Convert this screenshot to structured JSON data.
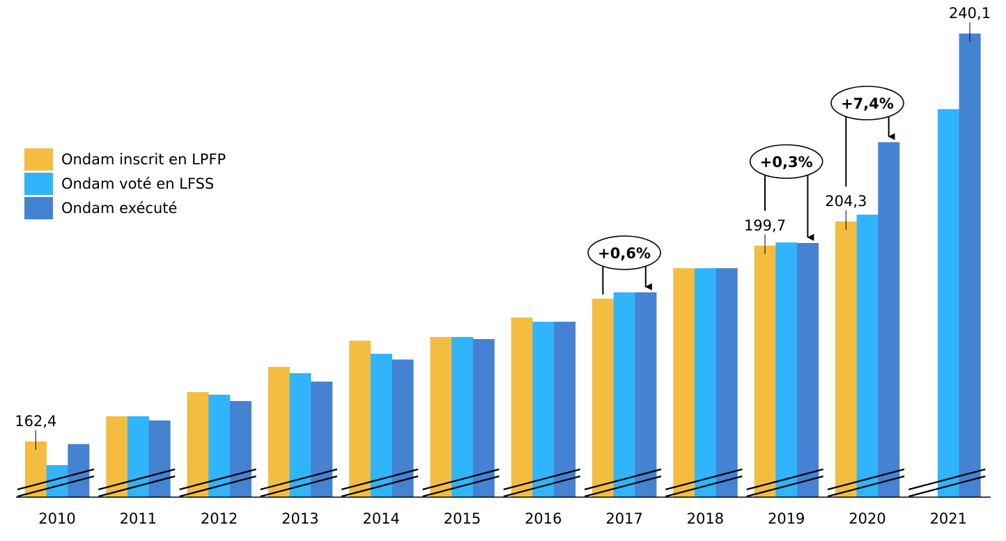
{
  "chart_data": {
    "type": "bar",
    "title": "",
    "xlabel": "",
    "ylabel": "",
    "axis_broken": true,
    "ylim": [
      151.8,
      242
    ],
    "grid": false,
    "legend_position": "left",
    "categories": [
      "2010",
      "2011",
      "2012",
      "2013",
      "2014",
      "2015",
      "2016",
      "2017",
      "2018",
      "2019",
      "2020",
      "2021"
    ],
    "series": [
      {
        "name": "Ondam inscrit en LPFP",
        "color": "#F4BD40",
        "values": [
          162.4,
          167.2,
          171.8,
          176.6,
          181.6,
          182.3,
          186.0,
          189.6,
          195.4,
          199.7,
          204.3,
          null
        ]
      },
      {
        "name": "Ondam voté en LFSS",
        "color": "#30B4FC",
        "values": [
          157.9,
          167.2,
          171.3,
          175.4,
          179.1,
          182.3,
          185.2,
          190.8,
          195.4,
          200.3,
          205.6,
          225.7
        ]
      },
      {
        "name": "Ondam exécuté",
        "color": "#4582D2",
        "values": [
          161.9,
          166.4,
          170.1,
          173.8,
          178.0,
          181.9,
          185.2,
          190.8,
          195.4,
          200.2,
          219.4,
          240.1
        ]
      }
    ],
    "data_labels": [
      {
        "category": "2010",
        "series": 0,
        "text": "162,4"
      },
      {
        "category": "2019",
        "series": 0,
        "text": "199,7"
      },
      {
        "category": "2020",
        "series": 0,
        "text": "204,3"
      },
      {
        "category": "2021",
        "series": 2,
        "text": "240,1"
      }
    ],
    "annotations": [
      {
        "category": "2017",
        "text": "+0,6%"
      },
      {
        "category": "2019",
        "text": "+0,3%"
      },
      {
        "category": "2020",
        "text": "+7,4%"
      }
    ]
  }
}
